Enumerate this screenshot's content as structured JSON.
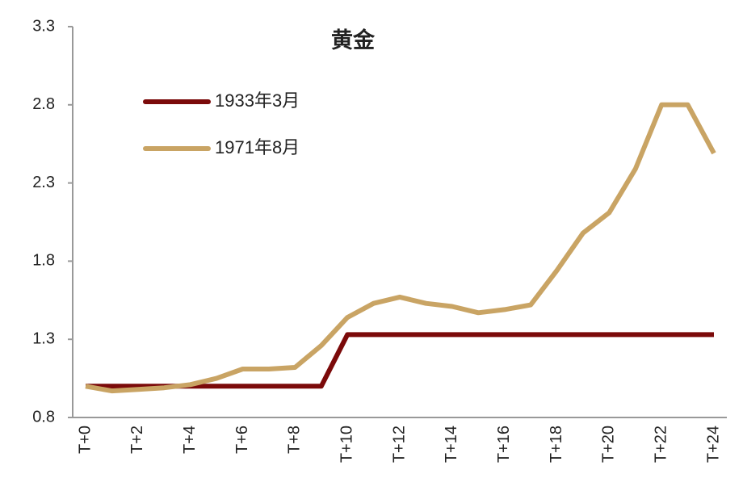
{
  "chart_data": {
    "type": "line",
    "title": "黄金",
    "categories": [
      "T+0",
      null,
      "T+2",
      null,
      "T+4",
      null,
      "T+6",
      null,
      "T+8",
      null,
      "T+10",
      null,
      "T+12",
      null,
      "T+14",
      null,
      "T+16",
      null,
      "T+18",
      null,
      "T+20",
      null,
      "T+22",
      null,
      "T+24"
    ],
    "series": [
      {
        "name": "1933年3月",
        "color": "#7b0a0a",
        "values": [
          1.0,
          1.0,
          1.0,
          1.0,
          1.0,
          1.0,
          1.0,
          1.0,
          1.0,
          1.0,
          1.33,
          1.33,
          1.33,
          1.33,
          1.33,
          1.33,
          1.33,
          1.33,
          1.33,
          1.33,
          1.33,
          1.33,
          1.33,
          1.33,
          1.33
        ]
      },
      {
        "name": "1971年8月",
        "color": "#c9a464",
        "values": [
          1.0,
          0.97,
          0.98,
          0.99,
          1.01,
          1.05,
          1.11,
          1.11,
          1.12,
          1.26,
          1.44,
          1.53,
          1.57,
          1.53,
          1.51,
          1.47,
          1.49,
          1.52,
          1.74,
          1.98,
          2.11,
          2.39,
          2.8,
          2.8,
          2.49
        ]
      }
    ],
    "ylim": [
      0.8,
      3.3
    ],
    "yticks": [
      0.8,
      1.3,
      1.8,
      2.3,
      2.8,
      3.3
    ],
    "grid": false,
    "legend": "upper-left"
  }
}
